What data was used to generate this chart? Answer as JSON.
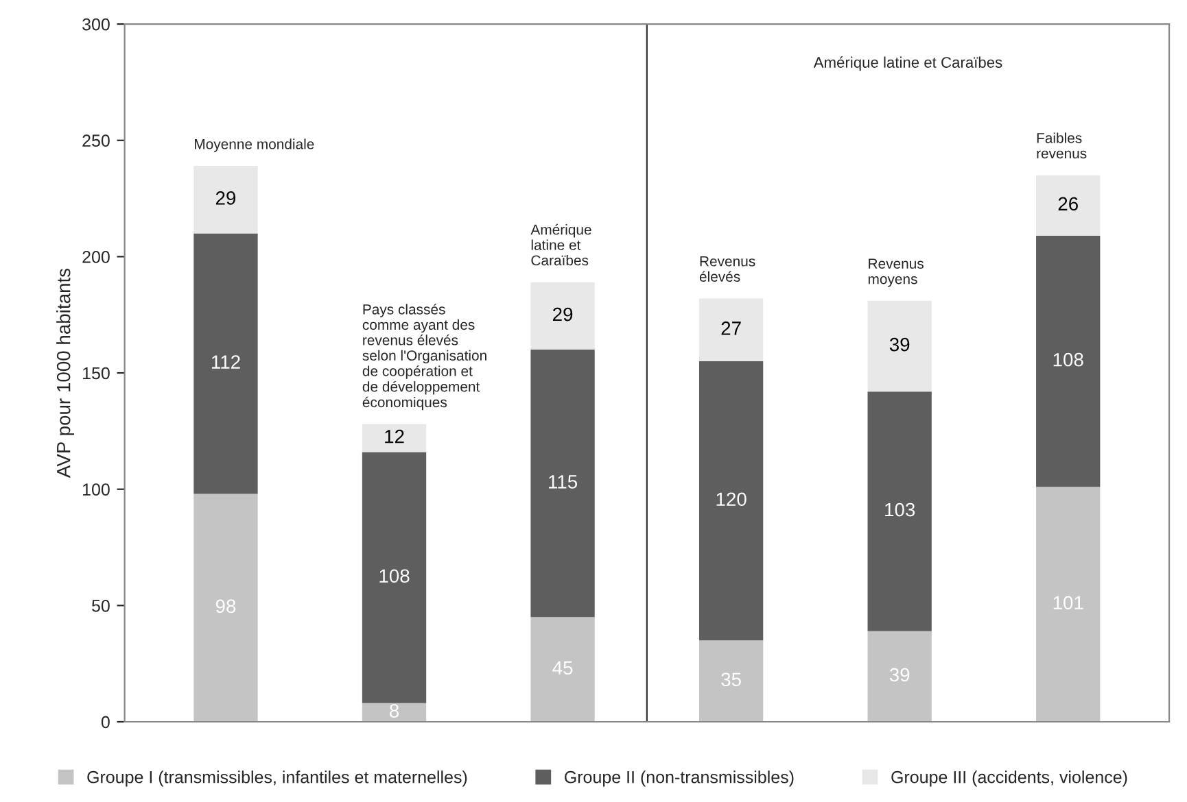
{
  "chart_data": {
    "type": "bar",
    "stacked": true,
    "ylabel": "AVP pour 1000 habitants",
    "categories": [
      "Moyenne mondiale",
      "Pays classés\ncomme ayant des\nrevenus élevés\nselon l'Organisation\nde coopération et\nde développement\néconomiques",
      "Amérique\nlatine et\nCaraïbes",
      "Revenus\nélevés",
      "Revenus\nmoyens",
      "Faibles\nrevenus"
    ],
    "series": [
      {
        "name": "Groupe I (transmissibles, infantiles et maternelles)",
        "color": "#c4c4c4",
        "values": [
          98,
          8,
          45,
          35,
          39,
          101
        ]
      },
      {
        "name": "Groupe II (non-transmissibles)",
        "color": "#5e5e5e",
        "values": [
          112,
          108,
          115,
          120,
          103,
          108
        ]
      },
      {
        "name": "Groupe III (accidents, violence)",
        "color": "#e8e8e8",
        "values": [
          29,
          12,
          29,
          27,
          39,
          26
        ]
      }
    ],
    "data_labels": true,
    "ylim": [
      0,
      300
    ],
    "yticks": [
      0,
      50,
      100,
      150,
      200,
      250,
      300
    ],
    "grid": false,
    "legend": "bottom",
    "annotations": [
      "Amérique latine et Caraïbes"
    ]
  }
}
